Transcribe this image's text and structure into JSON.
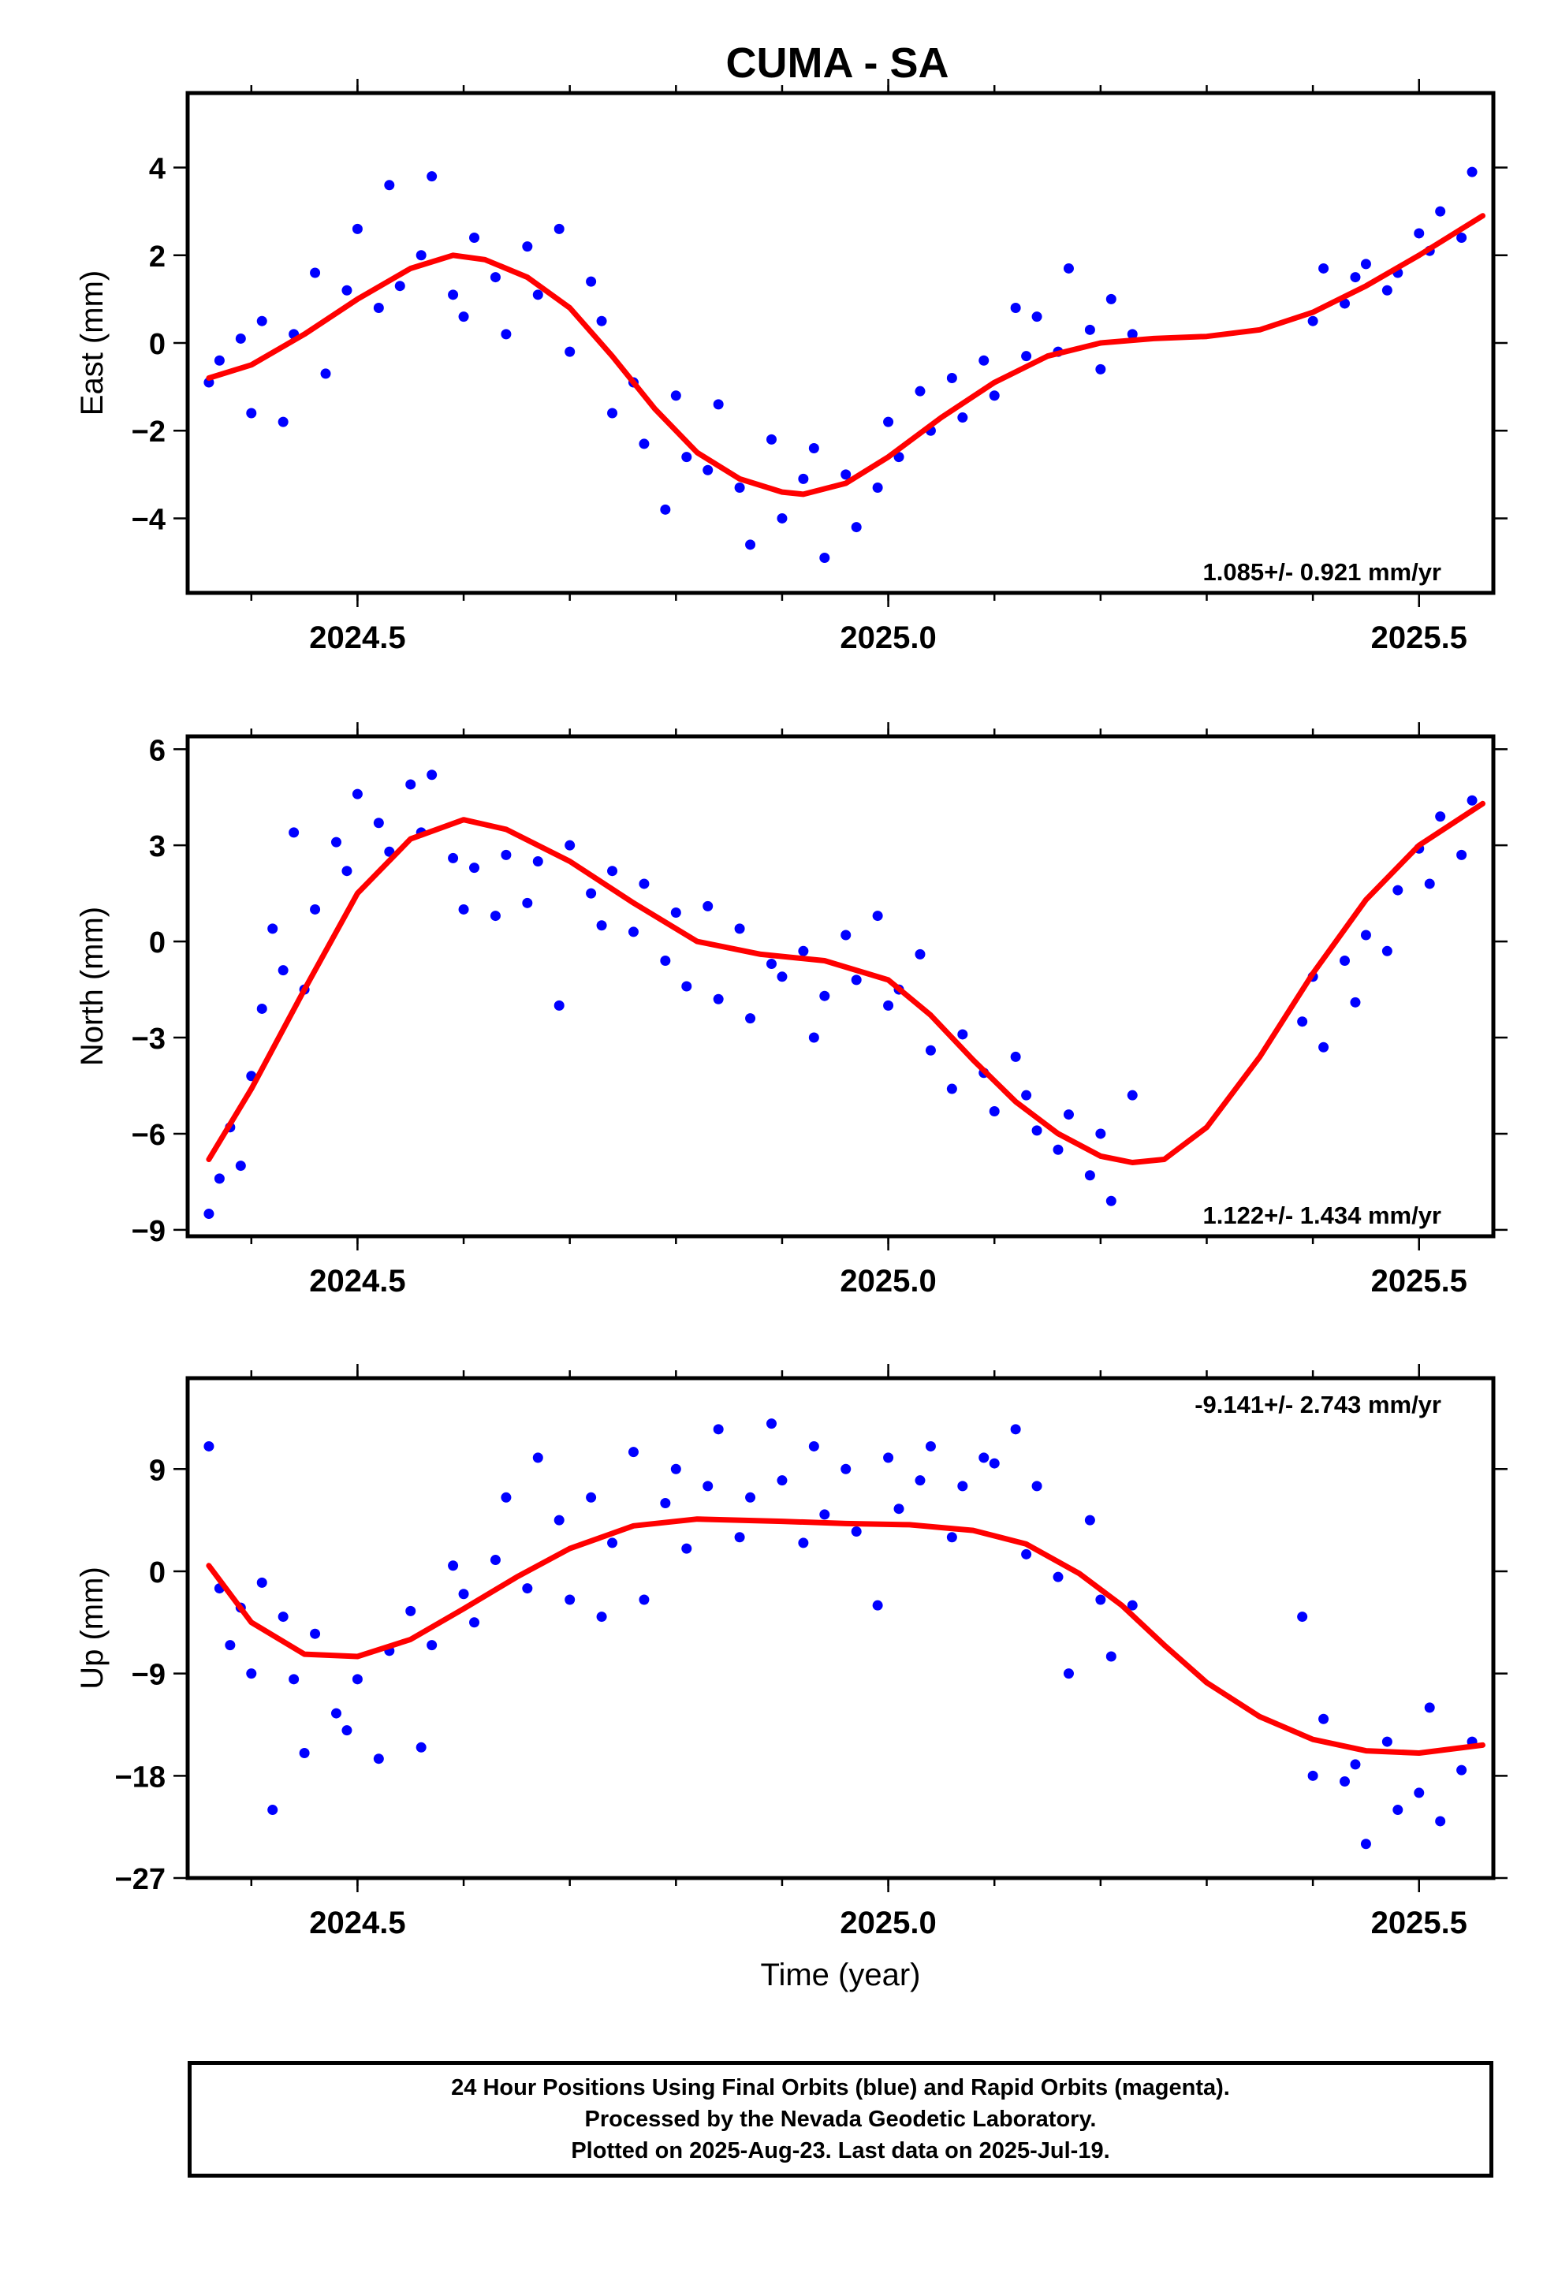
{
  "chart_data": [
    {
      "type": "scatter",
      "title": "CUMA - SA",
      "ylabel": "East (mm)",
      "xlabel": "",
      "xlim": [
        2024.34,
        2025.57
      ],
      "ylim": [
        -5.7,
        5.7
      ],
      "xticks": [
        "2024.5",
        "2025.0",
        "2025.5"
      ],
      "yticks": [
        "4",
        "2",
        "0",
        "−2",
        "−4"
      ],
      "ytick_values": [
        4,
        2,
        0,
        -2,
        -4
      ],
      "annotation": "1.085+/- 0.921 mm/yr",
      "annotation_position": "bottom-right",
      "grid": false,
      "series": [
        {
          "name": "Final Orbits",
          "color": "#0000ff",
          "style": "points",
          "x": [
            2024.36,
            2024.37,
            2024.39,
            2024.4,
            2024.41,
            2024.43,
            2024.44,
            2024.46,
            2024.47,
            2024.49,
            2024.5,
            2024.52,
            2024.53,
            2024.54,
            2024.56,
            2024.57,
            2024.59,
            2024.6,
            2024.61,
            2024.63,
            2024.64,
            2024.66,
            2024.67,
            2024.69,
            2024.7,
            2024.72,
            2024.73,
            2024.74,
            2024.76,
            2024.77,
            2024.79,
            2024.8,
            2024.81,
            2024.83,
            2024.84,
            2024.86,
            2024.87,
            2024.89,
            2024.9,
            2024.92,
            2024.93,
            2024.94,
            2024.96,
            2024.97,
            2024.99,
            2025.0,
            2025.01,
            2025.03,
            2025.04,
            2025.06,
            2025.07,
            2025.09,
            2025.1,
            2025.12,
            2025.13,
            2025.14,
            2025.16,
            2025.17,
            2025.19,
            2025.2,
            2025.21,
            2025.23,
            2025.4,
            2025.41,
            2025.43,
            2025.44,
            2025.45,
            2025.47,
            2025.48,
            2025.5,
            2025.51,
            2025.52,
            2025.54,
            2025.55
          ],
          "y": [
            -0.9,
            -0.4,
            0.1,
            -1.6,
            0.5,
            -1.8,
            0.2,
            1.6,
            -0.7,
            1.2,
            2.6,
            0.8,
            3.6,
            1.3,
            2.0,
            3.8,
            1.1,
            0.6,
            2.4,
            1.5,
            0.2,
            2.2,
            1.1,
            2.6,
            -0.2,
            1.4,
            0.5,
            -1.6,
            -0.9,
            -2.3,
            -3.8,
            -1.2,
            -2.6,
            -2.9,
            -1.4,
            -3.3,
            -4.6,
            -2.2,
            -4.0,
            -3.1,
            -2.4,
            -4.9,
            -3.0,
            -4.2,
            -3.3,
            -1.8,
            -2.6,
            -1.1,
            -2.0,
            -0.8,
            -1.7,
            -0.4,
            -1.2,
            0.8,
            -0.3,
            0.6,
            -0.2,
            1.7,
            0.3,
            -0.6,
            1.0,
            0.2,
            0.5,
            1.7,
            0.9,
            1.5,
            1.8,
            1.2,
            1.6,
            2.5,
            2.1,
            3.0,
            2.4,
            3.9
          ]
        },
        {
          "name": "Fit",
          "color": "#ff0000",
          "style": "line",
          "x": [
            2024.36,
            2024.4,
            2024.45,
            2024.5,
            2024.55,
            2024.59,
            2024.62,
            2024.66,
            2024.7,
            2024.74,
            2024.78,
            2024.82,
            2024.86,
            2024.9,
            2024.92,
            2024.96,
            2025.0,
            2025.05,
            2025.1,
            2025.15,
            2025.2,
            2025.25,
            2025.3,
            2025.35,
            2025.4,
            2025.45,
            2025.5,
            2025.56
          ],
          "y": [
            -0.8,
            -0.5,
            0.2,
            1.0,
            1.7,
            2.0,
            1.9,
            1.5,
            0.8,
            -0.3,
            -1.5,
            -2.5,
            -3.1,
            -3.4,
            -3.45,
            -3.2,
            -2.6,
            -1.7,
            -0.9,
            -0.3,
            0.0,
            0.1,
            0.15,
            0.3,
            0.7,
            1.3,
            2.0,
            2.9
          ]
        }
      ]
    },
    {
      "type": "scatter",
      "title": "",
      "ylabel": "North (mm)",
      "xlabel": "",
      "xlim": [
        2024.34,
        2025.57
      ],
      "ylim": [
        -9.2,
        6.4
      ],
      "xticks": [
        "2024.5",
        "2025.0",
        "2025.5"
      ],
      "yticks": [
        "6",
        "3",
        "0",
        "−3",
        "−6",
        "−9"
      ],
      "ytick_values": [
        6,
        3,
        0,
        -3,
        -6,
        -9
      ],
      "annotation": "1.122+/- 1.434 mm/yr",
      "annotation_position": "bottom-right",
      "grid": false,
      "series": [
        {
          "name": "Final Orbits",
          "color": "#0000ff",
          "style": "points",
          "x": [
            2024.36,
            2024.37,
            2024.38,
            2024.39,
            2024.4,
            2024.41,
            2024.42,
            2024.43,
            2024.44,
            2024.45,
            2024.46,
            2024.48,
            2024.49,
            2024.5,
            2024.52,
            2024.53,
            2024.55,
            2024.56,
            2024.57,
            2024.59,
            2024.6,
            2024.61,
            2024.63,
            2024.64,
            2024.66,
            2024.67,
            2024.69,
            2024.7,
            2024.72,
            2024.73,
            2024.74,
            2024.76,
            2024.77,
            2024.79,
            2024.8,
            2024.81,
            2024.83,
            2024.84,
            2024.86,
            2024.87,
            2024.89,
            2024.9,
            2024.92,
            2024.93,
            2024.94,
            2024.96,
            2024.97,
            2024.99,
            2025.0,
            2025.01,
            2025.03,
            2025.04,
            2025.06,
            2025.07,
            2025.09,
            2025.1,
            2025.12,
            2025.13,
            2025.14,
            2025.16,
            2025.17,
            2025.19,
            2025.2,
            2025.21,
            2025.23,
            2025.39,
            2025.4,
            2025.41,
            2025.43,
            2025.44,
            2025.45,
            2025.47,
            2025.48,
            2025.5,
            2025.51,
            2025.52,
            2025.54,
            2025.55
          ],
          "y": [
            -8.5,
            -7.4,
            -5.8,
            -7.0,
            -4.2,
            -2.1,
            0.4,
            -0.9,
            3.4,
            -1.5,
            1.0,
            3.1,
            2.2,
            4.6,
            3.7,
            2.8,
            4.9,
            3.4,
            5.2,
            2.6,
            1.0,
            2.3,
            0.8,
            2.7,
            1.2,
            2.5,
            -2.0,
            3.0,
            1.5,
            0.5,
            2.2,
            0.3,
            1.8,
            -0.6,
            0.9,
            -1.4,
            1.1,
            -1.8,
            0.4,
            -2.4,
            -0.7,
            -1.1,
            -0.3,
            -3.0,
            -1.7,
            0.2,
            -1.2,
            0.8,
            -2.0,
            -1.5,
            -0.4,
            -3.4,
            -4.6,
            -2.9,
            -4.1,
            -5.3,
            -3.6,
            -4.8,
            -5.9,
            -6.5,
            -5.4,
            -7.3,
            -6.0,
            -8.1,
            -4.8,
            -2.5,
            -1.1,
            -3.3,
            -0.6,
            -1.9,
            0.2,
            -0.3,
            1.6,
            2.9,
            1.8,
            3.9,
            2.7,
            4.4
          ]
        },
        {
          "name": "Fit",
          "color": "#ff0000",
          "style": "line",
          "x": [
            2024.36,
            2024.4,
            2024.45,
            2024.5,
            2024.55,
            2024.6,
            2024.64,
            2024.7,
            2024.76,
            2024.82,
            2024.88,
            2024.94,
            2025.0,
            2025.04,
            2025.08,
            2025.12,
            2025.16,
            2025.2,
            2025.23,
            2025.26,
            2025.3,
            2025.35,
            2025.4,
            2025.45,
            2025.5,
            2025.56
          ],
          "y": [
            -6.8,
            -4.6,
            -1.5,
            1.5,
            3.2,
            3.8,
            3.5,
            2.5,
            1.2,
            0.0,
            -0.4,
            -0.6,
            -1.2,
            -2.3,
            -3.7,
            -5.0,
            -6.0,
            -6.7,
            -6.9,
            -6.8,
            -5.8,
            -3.6,
            -1.0,
            1.3,
            3.0,
            4.3
          ]
        }
      ]
    },
    {
      "type": "scatter",
      "title": "",
      "ylabel": "Up (mm)",
      "xlabel": "Time (year)",
      "xlim": [
        2024.34,
        2025.57
      ],
      "ylim": [
        -27,
        17
      ],
      "xticks": [
        "2024.5",
        "2025.0",
        "2025.5"
      ],
      "yticks": [
        "9",
        "0",
        "−9",
        "−18",
        "−27"
      ],
      "ytick_values": [
        9,
        0,
        -9,
        -18,
        -27
      ],
      "annotation": "-9.141+/- 2.743 mm/yr",
      "annotation_position": "top-right",
      "grid": false,
      "series": [
        {
          "name": "Final Orbits",
          "color": "#0000ff",
          "style": "points",
          "x": [
            2024.36,
            2024.37,
            2024.38,
            2024.39,
            2024.4,
            2024.41,
            2024.42,
            2024.43,
            2024.44,
            2024.45,
            2024.46,
            2024.48,
            2024.49,
            2024.5,
            2024.52,
            2024.53,
            2024.55,
            2024.56,
            2024.57,
            2024.59,
            2024.6,
            2024.61,
            2024.63,
            2024.64,
            2024.66,
            2024.67,
            2024.69,
            2024.7,
            2024.72,
            2024.73,
            2024.74,
            2024.76,
            2024.77,
            2024.79,
            2024.8,
            2024.81,
            2024.83,
            2024.84,
            2024.86,
            2024.87,
            2024.89,
            2024.9,
            2024.92,
            2024.93,
            2024.94,
            2024.96,
            2024.97,
            2024.99,
            2025.0,
            2025.01,
            2025.03,
            2025.04,
            2025.06,
            2025.07,
            2025.09,
            2025.1,
            2025.12,
            2025.13,
            2025.14,
            2025.16,
            2025.17,
            2025.19,
            2025.2,
            2025.21,
            2025.23,
            2025.39,
            2025.4,
            2025.41,
            2025.43,
            2025.44,
            2025.45,
            2025.47,
            2025.48,
            2025.5,
            2025.51,
            2025.52,
            2025.54,
            2025.55
          ],
          "y": [
            11.0,
            -1.5,
            -6.5,
            -3.2,
            -9.0,
            -1.0,
            -21.0,
            -4.0,
            -9.5,
            -16.0,
            -5.5,
            -12.5,
            -14.0,
            -9.5,
            -16.5,
            -7.0,
            -3.5,
            -15.5,
            -6.5,
            0.5,
            -2.0,
            -4.5,
            1.0,
            6.5,
            -1.5,
            10.0,
            4.5,
            -2.5,
            6.5,
            -4.0,
            2.5,
            10.5,
            -2.5,
            6.0,
            9.0,
            2.0,
            7.5,
            12.5,
            3.0,
            6.5,
            13.0,
            8.0,
            2.5,
            11.0,
            5.0,
            9.0,
            3.5,
            -3.0,
            10.0,
            5.5,
            8.0,
            11.0,
            3.0,
            7.5,
            10.0,
            9.5,
            12.5,
            1.5,
            7.5,
            -0.5,
            -9.0,
            4.5,
            -2.5,
            -7.5,
            -3.0,
            -4.0,
            -18.0,
            -13.0,
            -18.5,
            -17.0,
            -24.0,
            -15.0,
            -21.0,
            -19.5,
            -12.0,
            -22.0,
            -17.5,
            -15.0
          ]
        },
        {
          "name": "Fit",
          "color": "#ff0000",
          "style": "line",
          "x": [
            2024.36,
            2024.4,
            2024.45,
            2024.5,
            2024.55,
            2024.6,
            2024.65,
            2024.7,
            2024.76,
            2024.82,
            2024.9,
            2024.96,
            2025.02,
            2025.08,
            2025.13,
            2025.18,
            2025.22,
            2025.26,
            2025.3,
            2025.35,
            2025.4,
            2025.45,
            2025.5,
            2025.56
          ],
          "y": [
            0.5,
            -4.5,
            -7.3,
            -7.5,
            -6.0,
            -3.3,
            -0.5,
            2.0,
            4.0,
            4.6,
            4.4,
            4.2,
            4.1,
            3.6,
            2.4,
            -0.2,
            -3.0,
            -6.5,
            -9.8,
            -12.8,
            -14.8,
            -15.8,
            -16.0,
            -15.3
          ]
        }
      ]
    }
  ],
  "caption": {
    "line1": "24 Hour Positions Using Final Orbits (blue) and Rapid Orbits (magenta).",
    "line2": "Processed by the Nevada Geodetic Laboratory.",
    "line3": "Plotted on 2025-Aug-23. Last data on 2025-Jul-19."
  }
}
